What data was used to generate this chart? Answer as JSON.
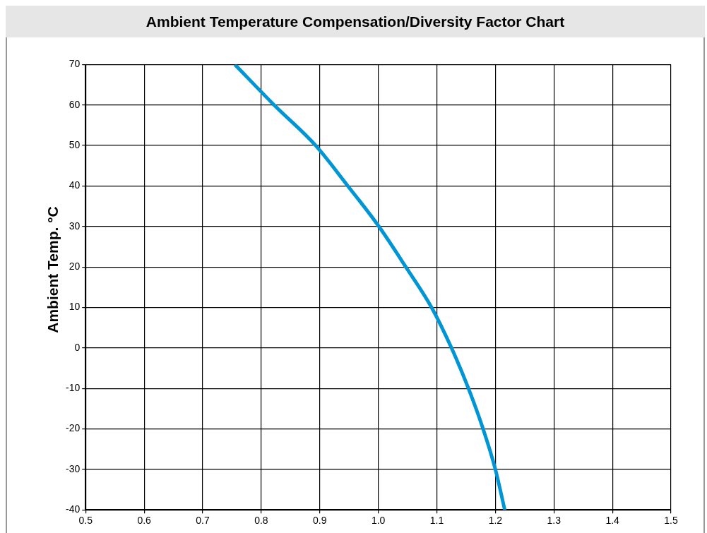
{
  "chart_data": {
    "type": "line",
    "title": "Ambient Temperature Compensation/Diversity Factor Chart",
    "ylabel": "Ambient Temp. °C",
    "xlim": [
      0.5,
      1.5
    ],
    "xticks": [
      {
        "value": 0.5,
        "label": "0.5"
      },
      {
        "value": 0.6,
        "label": "0.6"
      },
      {
        "value": 0.7,
        "label": "0.7"
      },
      {
        "value": 0.8,
        "label": "0.8"
      },
      {
        "value": 0.9,
        "label": "0.9"
      },
      {
        "value": 1.0,
        "label": "1.0"
      },
      {
        "value": 1.1,
        "label": "1.1"
      },
      {
        "value": 1.2,
        "label": "1.2"
      },
      {
        "value": 1.3,
        "label": "1.3"
      },
      {
        "value": 1.4,
        "label": "1.4"
      },
      {
        "value": 1.5,
        "label": "1.5"
      }
    ],
    "ylim": [
      -40,
      70
    ],
    "yticks": [
      -40,
      -30,
      -20,
      -10,
      0,
      10,
      20,
      30,
      40,
      50,
      60,
      70
    ],
    "grid": true,
    "legend": false,
    "marker": "none",
    "line_style": "solid",
    "series": [
      {
        "color": "#0096d6",
        "x": [
          0.755,
          0.822,
          0.893,
          0.948,
          1.001,
          1.047,
          1.091,
          1.125,
          1.154,
          1.179,
          1.2,
          1.216
        ],
        "values": [
          70,
          60,
          50,
          40,
          30,
          20,
          10,
          0,
          -10,
          -20,
          -30,
          -40
        ]
      }
    ]
  }
}
